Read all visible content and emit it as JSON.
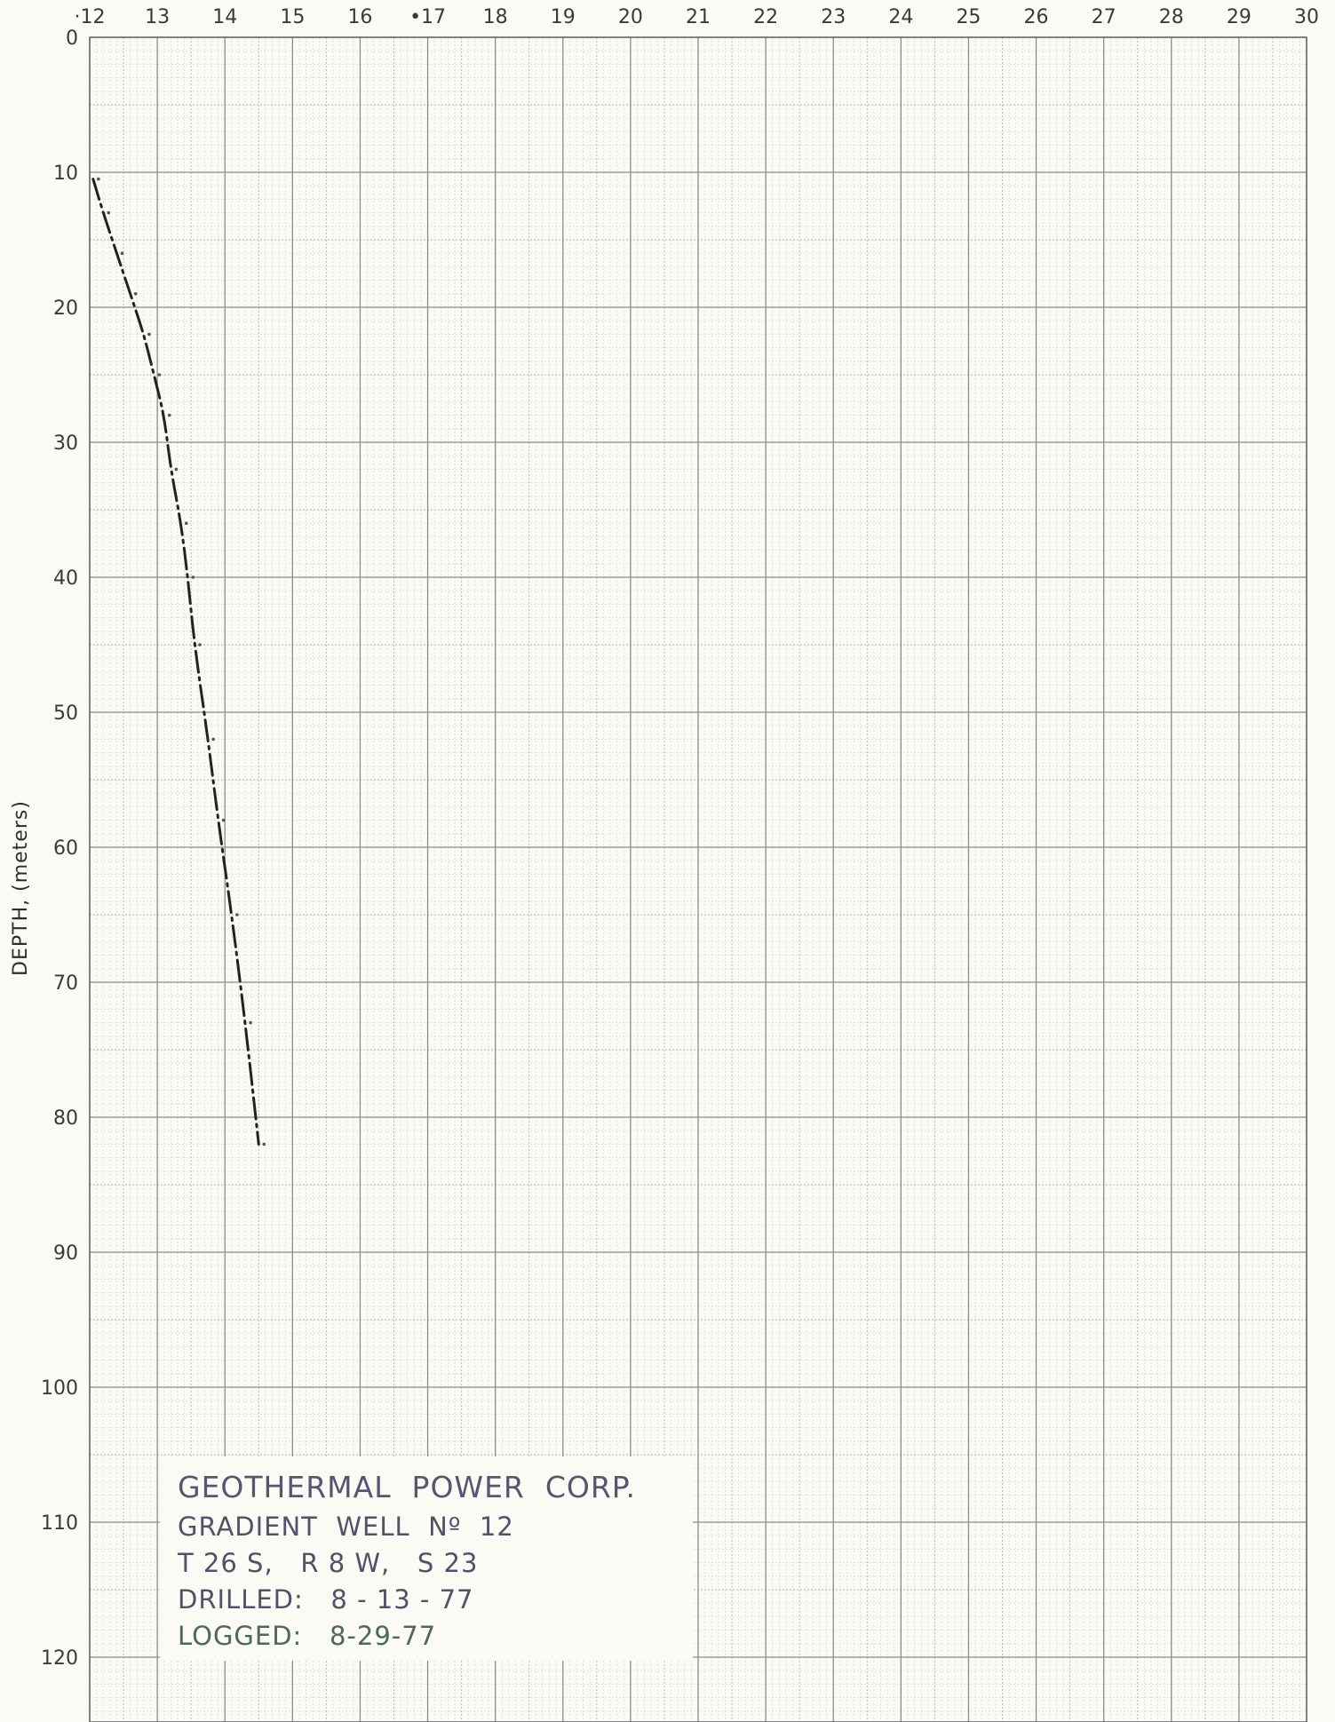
{
  "chart_data": {
    "type": "line",
    "title": "",
    "xlabel": "",
    "ylabel": "DEPTH, (meters)",
    "xlim": [
      12,
      30
    ],
    "ylim": [
      0,
      125
    ],
    "y_inverted": true,
    "x_axis_position": "top",
    "grid": true,
    "x_ticks": [
      "·12",
      "13",
      "14",
      "15",
      "16",
      "•17",
      "18",
      "19",
      "20",
      "21",
      "22",
      "23",
      "24",
      "25",
      "26",
      "27",
      "28",
      "29",
      "30"
    ],
    "y_ticks": [
      "0",
      "10",
      "20",
      "30",
      "40",
      "50",
      "60",
      "70",
      "80",
      "90",
      "100",
      "110",
      "120"
    ],
    "series": [
      {
        "line_style": "dash-dot",
        "color": "#222222",
        "x": [
          12.05,
          12.2,
          12.4,
          12.6,
          12.8,
          12.95,
          13.1,
          13.2,
          13.35,
          13.45,
          13.55,
          13.75,
          13.9,
          14.1,
          14.3,
          14.5
        ],
        "y": [
          10.5,
          13,
          16,
          19,
          22,
          25,
          28,
          32,
          36,
          40,
          45,
          52,
          58,
          65,
          73,
          82
        ]
      }
    ]
  },
  "stamp": {
    "company": "GEOTHERMAL  POWER  CORP.",
    "well": "GRADIENT  WELL  Nº  12",
    "location": "T 26 S,   R 8 W,   S 23",
    "drilled": "DRILLED:   8 - 13 - 77",
    "logged": "LOGGED:   8-29-77"
  }
}
